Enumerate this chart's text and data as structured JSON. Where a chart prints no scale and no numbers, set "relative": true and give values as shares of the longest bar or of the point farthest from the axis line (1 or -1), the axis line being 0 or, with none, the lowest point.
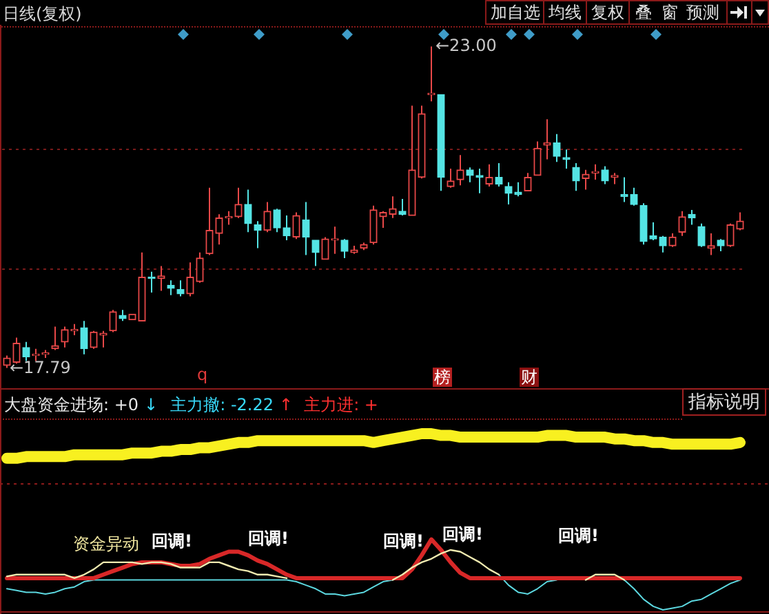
{
  "chart_data": [
    {
      "type": "candlestick",
      "title": "日线(复权)",
      "categories": [
        null,
        null,
        null,
        null,
        null,
        null,
        null,
        null,
        null,
        null,
        null,
        null,
        null,
        null,
        null,
        null,
        null,
        null,
        null,
        null,
        null,
        null,
        null,
        null,
        null,
        null,
        null,
        null,
        null,
        null,
        null,
        null,
        null,
        null,
        null,
        null,
        null,
        null,
        null,
        null,
        null,
        null,
        null,
        null,
        null,
        null,
        null,
        null,
        null,
        null,
        null,
        null,
        null,
        null,
        null,
        null,
        null,
        null,
        null,
        null,
        null,
        null,
        null,
        null,
        null,
        null,
        null,
        null,
        null,
        null,
        null,
        null,
        null,
        null,
        null,
        null,
        null
      ],
      "ohlc": [
        [
          17.83,
          17.99,
          17.79,
          17.95
        ],
        [
          17.88,
          18.28,
          17.86,
          18.19
        ],
        [
          18.12,
          18.21,
          17.9,
          17.97
        ],
        [
          17.99,
          18.1,
          17.9,
          18.01
        ],
        [
          18.01,
          18.08,
          17.95,
          18.03
        ],
        [
          18.1,
          18.46,
          18.08,
          18.15
        ],
        [
          18.21,
          18.46,
          18.12,
          18.41
        ],
        [
          18.39,
          18.5,
          18.32,
          18.41
        ],
        [
          18.44,
          18.55,
          18.01,
          18.1
        ],
        [
          18.12,
          18.39,
          18.1,
          18.37
        ],
        [
          18.32,
          18.39,
          18.12,
          18.35
        ],
        [
          18.39,
          18.73,
          18.37,
          18.7
        ],
        [
          18.64,
          18.73,
          18.55,
          18.59
        ],
        [
          18.57,
          18.66,
          18.57,
          18.66
        ],
        [
          18.55,
          19.66,
          18.55,
          19.26
        ],
        [
          19.26,
          19.35,
          19.01,
          19.24
        ],
        [
          19.24,
          19.44,
          19.04,
          19.28
        ],
        [
          19.13,
          19.21,
          18.97,
          19.08
        ],
        [
          19.06,
          19.21,
          18.95,
          18.99
        ],
        [
          18.99,
          19.5,
          18.95,
          19.26
        ],
        [
          19.19,
          19.66,
          19.17,
          19.57
        ],
        [
          19.64,
          20.71,
          19.62,
          20.02
        ],
        [
          19.97,
          20.28,
          19.79,
          20.22
        ],
        [
          20.22,
          20.33,
          20.11,
          20.24
        ],
        [
          20.24,
          20.71,
          20.22,
          20.44
        ],
        [
          20.44,
          20.68,
          19.99,
          20.13
        ],
        [
          20.11,
          20.17,
          19.73,
          20.02
        ],
        [
          20.02,
          20.48,
          19.99,
          20.33
        ],
        [
          20.35,
          20.37,
          19.99,
          20.06
        ],
        [
          20.06,
          20.26,
          19.86,
          19.93
        ],
        [
          19.91,
          20.31,
          19.88,
          20.26
        ],
        [
          20.19,
          20.48,
          19.62,
          19.91
        ],
        [
          19.86,
          19.86,
          19.44,
          19.66
        ],
        [
          19.55,
          19.91,
          19.55,
          19.88
        ],
        [
          19.86,
          20.08,
          19.64,
          19.88
        ],
        [
          19.86,
          19.88,
          19.57,
          19.68
        ],
        [
          19.66,
          19.77,
          19.64,
          19.7
        ],
        [
          19.73,
          19.82,
          19.7,
          19.79
        ],
        [
          19.82,
          20.42,
          19.79,
          20.35
        ],
        [
          20.24,
          20.33,
          20.06,
          20.31
        ],
        [
          20.28,
          20.57,
          20.22,
          20.37
        ],
        [
          20.33,
          20.53,
          20.26,
          20.28
        ],
        [
          20.26,
          22.04,
          20.26,
          21.0
        ],
        [
          20.88,
          22.04,
          20.86,
          21.91
        ],
        [
          22.22,
          23.0,
          22.11,
          22.24
        ],
        [
          22.22,
          22.22,
          20.66,
          20.88
        ],
        [
          20.73,
          21.02,
          20.71,
          20.82
        ],
        [
          20.84,
          21.24,
          20.75,
          21.0
        ],
        [
          21.0,
          21.04,
          20.8,
          20.91
        ],
        [
          20.91,
          21.02,
          20.62,
          20.88
        ],
        [
          20.77,
          21.09,
          20.73,
          20.88
        ],
        [
          20.88,
          21.11,
          20.73,
          20.77
        ],
        [
          20.73,
          20.8,
          20.44,
          20.62
        ],
        [
          20.64,
          20.8,
          20.57,
          20.6
        ],
        [
          20.66,
          20.95,
          20.66,
          20.88
        ],
        [
          20.91,
          21.46,
          20.91,
          21.35
        ],
        [
          21.4,
          21.82,
          21.17,
          21.44
        ],
        [
          21.44,
          21.58,
          21.13,
          21.22
        ],
        [
          21.2,
          21.33,
          21.02,
          21.17
        ],
        [
          21.04,
          21.11,
          20.66,
          20.82
        ],
        [
          20.86,
          21.0,
          20.68,
          20.93
        ],
        [
          20.95,
          21.09,
          20.84,
          20.97
        ],
        [
          21.0,
          21.06,
          20.77,
          20.82
        ],
        [
          20.88,
          20.95,
          20.77,
          20.91
        ],
        [
          20.6,
          20.88,
          20.48,
          20.57
        ],
        [
          20.6,
          20.71,
          20.42,
          20.44
        ],
        [
          20.42,
          20.46,
          19.79,
          19.84
        ],
        [
          19.93,
          20.15,
          19.86,
          19.88
        ],
        [
          19.91,
          19.93,
          19.66,
          19.77
        ],
        [
          19.77,
          19.97,
          19.75,
          19.91
        ],
        [
          19.99,
          20.33,
          19.93,
          20.24
        ],
        [
          20.28,
          20.35,
          20.11,
          20.22
        ],
        [
          20.08,
          20.13,
          19.75,
          19.77
        ],
        [
          19.73,
          19.97,
          19.62,
          19.77
        ],
        [
          19.86,
          19.88,
          19.68,
          19.77
        ],
        [
          19.77,
          20.13,
          19.75,
          20.11
        ],
        [
          20.04,
          20.31,
          20.02,
          20.17
        ]
      ],
      "colors": [
        "#e84848",
        "#e84848",
        "#54e4e4",
        "#e84848",
        "#e84848",
        "#e84848",
        "#e84848",
        "#e84848",
        "#54e4e4",
        "#e84848",
        "#e84848",
        "#e84848",
        "#54e4e4",
        "#e84848",
        "#e84848",
        "#54e4e4",
        "#e84848",
        "#54e4e4",
        "#54e4e4",
        "#e84848",
        "#e84848",
        "#e84848",
        "#e84848",
        "#e84848",
        "#e84848",
        "#54e4e4",
        "#54e4e4",
        "#e84848",
        "#54e4e4",
        "#54e4e4",
        "#e84848",
        "#54e4e4",
        "#54e4e4",
        "#e84848",
        "#e84848",
        "#54e4e4",
        "#e84848",
        "#e84848",
        "#e84848",
        "#e84848",
        "#e84848",
        "#54e4e4",
        "#e84848",
        "#e84848",
        "#e84848",
        "#54e4e4",
        "#e84848",
        "#e84848",
        "#54e4e4",
        "#54e4e4",
        "#e84848",
        "#54e4e4",
        "#54e4e4",
        "#54e4e4",
        "#e84848",
        "#e84848",
        "#e84848",
        "#54e4e4",
        "#54e4e4",
        "#54e4e4",
        "#e84848",
        "#e84848",
        "#54e4e4",
        "#e84848",
        "#54e4e4",
        "#54e4e4",
        "#54e4e4",
        "#54e4e4",
        "#54e4e4",
        "#e84848",
        "#e84848",
        "#54e4e4",
        "#54e4e4",
        "#e84848",
        "#54e4e4",
        "#e84848",
        "#e84848"
      ],
      "ylim": [
        17.46,
        23.33
      ],
      "yticks": [
        {
          "value": 19.39,
          "label": null
        },
        {
          "value": 21.33,
          "label": null
        }
      ],
      "grid": "y",
      "tick_labels": false,
      "annotations": [
        "加自选",
        "均线",
        "复权",
        "叠",
        "窗",
        "预测",
        "←23.00",
        "←17.79",
        "q",
        "榜",
        "财"
      ]
    },
    {
      "type": "line",
      "relative": true,
      "tick_labels": false,
      "categories": [
        null,
        null,
        null,
        null,
        null,
        null,
        null,
        null,
        null,
        null,
        null,
        null,
        null,
        null,
        null,
        null,
        null,
        null,
        null,
        null,
        null,
        null,
        null,
        null,
        null,
        null,
        null,
        null,
        null,
        null,
        null,
        null,
        null,
        null,
        null,
        null,
        null,
        null,
        null,
        null,
        null,
        null,
        null,
        null,
        null,
        null,
        null,
        null,
        null,
        null,
        null,
        null,
        null,
        null,
        null,
        null,
        null,
        null,
        null,
        null,
        null,
        null,
        null,
        null,
        null,
        null,
        null,
        null,
        null,
        null,
        null,
        null,
        null,
        null,
        null,
        null,
        null
      ],
      "series": [
        {
          "color": "#f8f020",
          "values": [
            0.86,
            0.86,
            0.87,
            0.87,
            0.87,
            0.87,
            0.87,
            0.88,
            0.88,
            0.88,
            0.88,
            0.88,
            0.88,
            0.89,
            0.89,
            0.89,
            0.9,
            0.9,
            0.91,
            0.91,
            0.92,
            0.92,
            0.93,
            0.94,
            0.95,
            0.95,
            0.96,
            0.96,
            0.96,
            0.96,
            0.96,
            0.96,
            0.96,
            0.96,
            0.96,
            0.96,
            0.96,
            0.96,
            0.95,
            0.96,
            0.97,
            0.98,
            0.99,
            1.0,
            1.0,
            0.99,
            0.99,
            0.98,
            0.98,
            0.98,
            0.98,
            0.98,
            0.98,
            0.98,
            0.98,
            0.98,
            0.99,
            0.99,
            0.99,
            0.98,
            0.98,
            0.98,
            0.98,
            0.97,
            0.97,
            0.96,
            0.96,
            0.95,
            0.95,
            0.94,
            0.94,
            0.94,
            0.94,
            0.94,
            0.94,
            0.94,
            0.95
          ]
        },
        {
          "color": "#5cd8e0",
          "values": [
            0.12,
            0.11,
            0.1,
            0.1,
            0.09,
            0.1,
            0.12,
            0.13,
            0.16,
            0.17,
            0.17,
            0.17,
            0.17,
            0.17,
            0.17,
            0.17,
            0.17,
            0.17,
            0.17,
            0.17,
            0.17,
            0.17,
            0.17,
            0.17,
            0.17,
            0.17,
            0.17,
            0.17,
            0.17,
            0.17,
            0.16,
            0.14,
            0.12,
            0.09,
            0.09,
            0.08,
            0.09,
            0.1,
            0.13,
            0.16,
            0.17,
            null,
            null,
            null,
            null,
            null,
            null,
            null,
            null,
            null,
            null,
            0.2,
            0.14,
            0.1,
            0.09,
            0.12,
            0.16,
            0.17,
            null,
            null,
            null,
            null,
            null,
            null,
            0.17,
            0.12,
            0.06,
            0.02,
            0.0,
            0.01,
            0.02,
            0.05,
            0.06,
            0.09,
            0.12,
            0.15,
            0.17
          ]
        },
        {
          "color": "#d82828",
          "values": [
            0.18,
            0.18,
            0.18,
            0.18,
            0.18,
            0.18,
            0.18,
            0.18,
            0.18,
            0.18,
            0.2,
            0.22,
            0.24,
            0.26,
            0.27,
            0.27,
            0.27,
            0.26,
            0.25,
            0.25,
            0.26,
            0.29,
            0.31,
            0.33,
            0.33,
            0.31,
            0.28,
            0.26,
            0.23,
            0.2,
            0.18,
            0.18,
            0.18,
            0.18,
            0.18,
            0.18,
            0.18,
            0.18,
            0.18,
            0.18,
            0.18,
            0.18,
            0.23,
            0.31,
            0.4,
            0.34,
            0.27,
            0.21,
            0.18,
            0.18,
            0.18,
            0.18,
            0.18,
            0.18,
            0.18,
            0.18,
            0.18,
            0.18,
            0.18,
            0.18,
            0.18,
            0.18,
            0.18,
            0.18,
            0.18,
            0.18,
            0.18,
            0.18,
            0.18,
            0.18,
            0.18,
            0.18,
            0.18,
            0.18,
            0.18,
            0.18,
            0.18
          ]
        },
        {
          "color": "#f0eab0",
          "values": [
            0.19,
            0.2,
            0.2,
            0.2,
            0.2,
            0.2,
            0.2,
            0.18,
            0.2,
            0.23,
            0.27,
            0.27,
            0.27,
            0.27,
            0.26,
            0.27,
            0.27,
            0.26,
            0.24,
            0.24,
            0.24,
            0.27,
            0.27,
            0.25,
            0.23,
            0.22,
            0.2,
            0.2,
            0.19,
            0.18,
            null,
            null,
            null,
            null,
            null,
            null,
            null,
            null,
            null,
            null,
            0.17,
            0.2,
            0.24,
            0.27,
            0.29,
            0.32,
            0.34,
            0.33,
            0.3,
            0.27,
            0.23,
            0.2,
            null,
            null,
            null,
            null,
            null,
            null,
            null,
            null,
            0.17,
            0.2,
            0.2,
            0.2,
            0.17,
            null,
            null,
            null,
            null,
            null,
            null,
            null,
            null,
            null,
            null,
            null,
            null
          ]
        }
      ],
      "ref_lines": [
        {
          "axis": "y",
          "value": 0.72,
          "color": "#8b1a1a",
          "line_style": "dotted"
        }
      ],
      "annotations": [
        "大盘资金进场: +0",
        "↓",
        "主力撤: -2.22",
        "↑",
        "主力进: +",
        "指标说明",
        "资金异动",
        "回调!",
        "回调!",
        "回调!",
        "回调!",
        "回调!"
      ]
    }
  ]
}
